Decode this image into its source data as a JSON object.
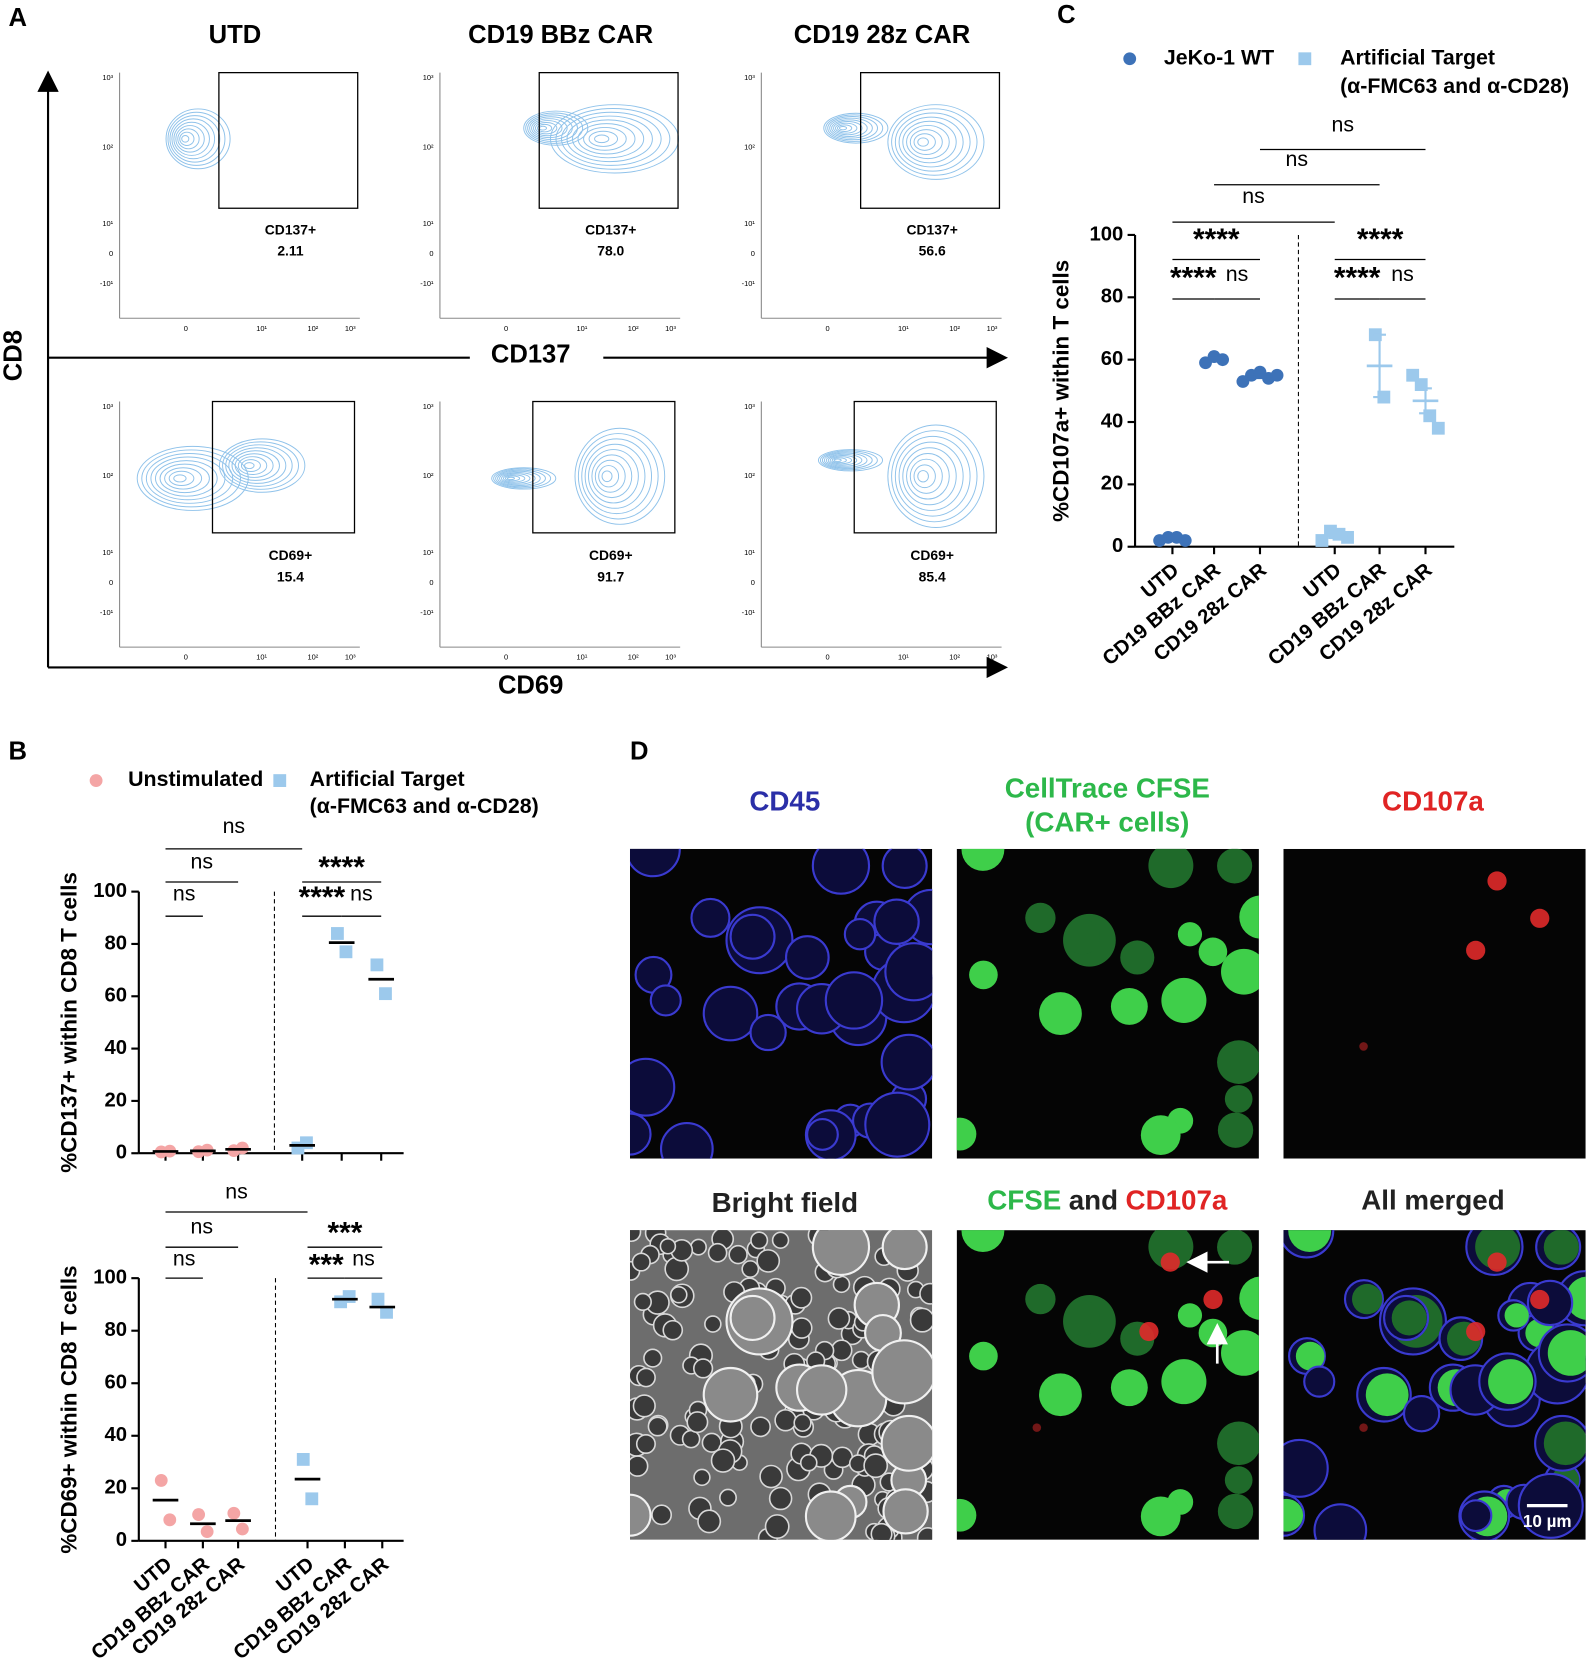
{
  "panel_labels": [
    "A",
    "B",
    "C",
    "D"
  ],
  "panel_a": {
    "columns": [
      "UTD",
      "CD19 BBz CAR",
      "CD19 28z CAR"
    ],
    "y_axis_label": "CD8",
    "y_tick_labels": [
      "10³",
      "10²",
      "10¹",
      "0",
      "-10¹"
    ],
    "x_tick_labels": [
      "0",
      "10¹",
      "10²",
      "10³"
    ],
    "rows": [
      {
        "axis_label": "CD137",
        "gate": "CD137+",
        "values": [
          "2.11",
          "78.0",
          "56.6"
        ]
      },
      {
        "axis_label": "CD69",
        "gate": "CD69+",
        "values": [
          "15.4",
          "91.7",
          "85.4"
        ]
      }
    ]
  },
  "chart_data": [
    {
      "type": "scatter",
      "y_label": "%CD137+ within CD8 T cells",
      "categories": [
        null,
        null,
        null,
        null,
        null,
        null
      ],
      "ylim": [
        0,
        100
      ],
      "yticks": [
        0,
        20,
        40,
        60,
        80,
        100
      ],
      "series": [
        {
          "name": "Unstimulated",
          "color": "#f4a5a5",
          "marker": "circle",
          "values": [
            [
              0.5,
              0.8
            ],
            [
              0.6,
              1.2
            ],
            [
              1.0,
              2.0
            ],
            null,
            null,
            null
          ],
          "means": [
            0.7,
            0.9,
            1.5,
            null,
            null,
            null
          ]
        },
        {
          "name": "Artificial Target",
          "name_detail": "(α-FMC63 and α-CD28)",
          "color": "#9cc9ec",
          "marker": "square",
          "values": [
            null,
            null,
            null,
            [
              2,
              4
            ],
            [
              84,
              77
            ],
            [
              72,
              61
            ]
          ],
          "means": [
            null,
            null,
            null,
            3,
            80.5,
            66.5
          ]
        }
      ],
      "annotations": [
        {
          "label": "ns",
          "from": 0,
          "to": 3
        },
        {
          "label": "ns",
          "from": 0,
          "to": 2
        },
        {
          "label": "ns",
          "from": 0,
          "to": 1
        },
        {
          "label": "****",
          "from": 3,
          "to": 5
        },
        {
          "label": "****",
          "from": 3,
          "to": 4
        },
        {
          "label": "ns",
          "from": 4,
          "to": 5
        }
      ]
    },
    {
      "type": "scatter",
      "y_label": "%CD69+ within CD8 T cells",
      "categories": [
        "UTD",
        "CD19 BBz CAR",
        "CD19 28z CAR",
        "UTD",
        "CD19 BBz CAR",
        "CD19 28z CAR"
      ],
      "ylim": [
        0,
        100
      ],
      "yticks": [
        0,
        20,
        40,
        60,
        80,
        100
      ],
      "series": [
        {
          "color": "#f4a5a5",
          "marker": "circle",
          "values": [
            [
              23,
              8
            ],
            [
              10,
              3.5
            ],
            [
              10.5,
              4.5
            ],
            null,
            null,
            null
          ],
          "means": [
            15.5,
            6.5,
            7.7,
            null,
            null,
            null
          ]
        },
        {
          "color": "#9cc9ec",
          "marker": "square",
          "values": [
            null,
            null,
            null,
            [
              31,
              16
            ],
            [
              91,
              93
            ],
            [
              92,
              87
            ]
          ],
          "means": [
            null,
            null,
            null,
            23.5,
            92,
            89
          ]
        }
      ],
      "annotations": [
        {
          "label": "ns",
          "from": 0,
          "to": 3
        },
        {
          "label": "ns",
          "from": 0,
          "to": 2
        },
        {
          "label": "ns",
          "from": 0,
          "to": 1
        },
        {
          "label": "***",
          "from": 3,
          "to": 5
        },
        {
          "label": "***",
          "from": 3,
          "to": 4
        },
        {
          "label": "ns",
          "from": 4,
          "to": 5
        }
      ]
    },
    {
      "type": "scatter",
      "y_label": "%CD107a+ within T cells",
      "categories": [
        "UTD",
        "CD19 BBz CAR",
        "CD19 28z CAR",
        "UTD",
        "CD19 BBz CAR",
        "CD19 28z CAR"
      ],
      "ylim": [
        0,
        100
      ],
      "yticks": [
        0,
        20,
        40,
        60,
        80,
        100
      ],
      "series": [
        {
          "name": "JeKo-1 WT",
          "color": "#3d72b8",
          "marker": "circle",
          "values": [
            [
              2,
              3,
              3,
              2
            ],
            [
              59,
              61,
              60
            ],
            [
              53,
              55,
              56,
              54,
              55
            ],
            null,
            null,
            null
          ],
          "means": [
            2.5,
            60,
            54.6,
            null,
            null,
            null
          ],
          "sem": [
            0.3,
            0.6,
            0.5,
            null,
            null,
            null
          ]
        },
        {
          "name": "Artificial Target",
          "name_detail": "(α-FMC63 and α-CD28)",
          "color": "#9cc9ec",
          "marker": "square",
          "values": [
            null,
            null,
            null,
            [
              2,
              5,
              4,
              3
            ],
            [
              68,
              48
            ],
            [
              55,
              52,
              42,
              38
            ]
          ],
          "means": [
            null,
            null,
            null,
            3.5,
            58,
            46.8
          ],
          "sem": [
            null,
            null,
            null,
            0.7,
            10,
            4
          ]
        }
      ],
      "annotations": [
        {
          "label": "ns",
          "from": 2,
          "to": 5
        },
        {
          "label": "ns",
          "from": 1,
          "to": 4
        },
        {
          "label": "ns",
          "from": 0,
          "to": 3
        },
        {
          "label": "****",
          "from": 0,
          "to": 2
        },
        {
          "label": "****",
          "from": 0,
          "to": 1
        },
        {
          "label": "ns",
          "from": 1,
          "to": 2
        },
        {
          "label": "****",
          "from": 3,
          "to": 5
        },
        {
          "label": "****",
          "from": 3,
          "to": 4
        },
        {
          "label": "ns",
          "from": 4,
          "to": 5
        }
      ]
    }
  ],
  "panel_d": {
    "top_titles": [
      "CD45",
      "CellTrace CFSE",
      "(CAR+ cells)",
      "CD107a"
    ],
    "bottom_titles": [
      "Bright field",
      "CFSE",
      "and",
      "CD107a",
      "All merged"
    ],
    "scale_bar": "10 µm"
  }
}
